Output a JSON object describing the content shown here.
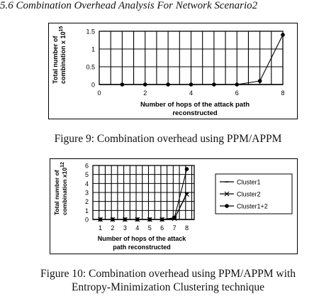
{
  "section_heading": "5.6  Combination Overhead Analysis For Network Scenario2",
  "figure9_caption": "Figure 9: Combination overhead using PPM/APPM",
  "figure10_caption_line1": "Figure 10: Combination overhead using PPM/APPM with",
  "figure10_caption_line2": "Entropy-Minimization Clustering technique",
  "chart_data": [
    {
      "type": "line",
      "ylabel_line1": "Total number of",
      "ylabel_line2": "combination x 10",
      "ylabel_exponent": "15",
      "xlabel_line1": "Number of hops of the attack path",
      "xlabel_line2": "reconstructed",
      "xlim": [
        0,
        8
      ],
      "ylim": [
        0,
        1.5
      ],
      "x_ticks": [
        0,
        2,
        4,
        6,
        8
      ],
      "y_ticks": [
        0,
        0.5,
        1,
        1.5
      ],
      "x_tick_labels": [
        "0",
        "2",
        "4",
        "6",
        "8"
      ],
      "y_tick_labels": [
        "0",
        "0.5",
        "1",
        "1.5"
      ],
      "grid": true,
      "series": [
        {
          "x": [
            1,
            2,
            3,
            4,
            5,
            6,
            7,
            8
          ],
          "values": [
            0,
            0,
            0,
            0,
            0,
            0,
            0.1,
            1.4
          ]
        }
      ]
    },
    {
      "type": "line",
      "ylabel_line1": "Total number of",
      "ylabel_line2": "combination x10",
      "ylabel_exponent": "12",
      "xlabel_line1": "Number of hops of the attack",
      "xlabel_line2": "path reconstructed",
      "xlim": [
        0.4,
        8.6
      ],
      "ylim": [
        0,
        6
      ],
      "x_ticks": [
        1,
        2,
        3,
        4,
        5,
        6,
        7,
        8
      ],
      "y_ticks": [
        0,
        1,
        2,
        3,
        4,
        5,
        6
      ],
      "x_tick_labels": [
        "1",
        "2",
        "3",
        "4",
        "5",
        "6",
        "7",
        "8"
      ],
      "y_tick_labels": [
        "0",
        "1",
        "2",
        "3",
        "4",
        "5",
        "6"
      ],
      "grid": true,
      "legend_position": "right",
      "series": [
        {
          "name": "Cluster1",
          "marker": "line",
          "x": [
            1,
            2,
            3,
            4,
            5,
            6,
            7,
            8
          ],
          "values": [
            0,
            0,
            0,
            0,
            0,
            0,
            0.1,
            2.9
          ]
        },
        {
          "name": "Cluster2",
          "marker": "x",
          "x": [
            1,
            2,
            3,
            4,
            5,
            6,
            7,
            8
          ],
          "values": [
            0,
            0,
            0,
            0,
            0,
            0,
            0.1,
            2.8
          ]
        },
        {
          "name": "Cluster1+2",
          "marker": "dot",
          "x": [
            1,
            2,
            3,
            4,
            5,
            6,
            7,
            8
          ],
          "values": [
            0,
            0,
            0,
            0,
            0,
            0,
            0.2,
            5.6
          ]
        }
      ]
    }
  ]
}
